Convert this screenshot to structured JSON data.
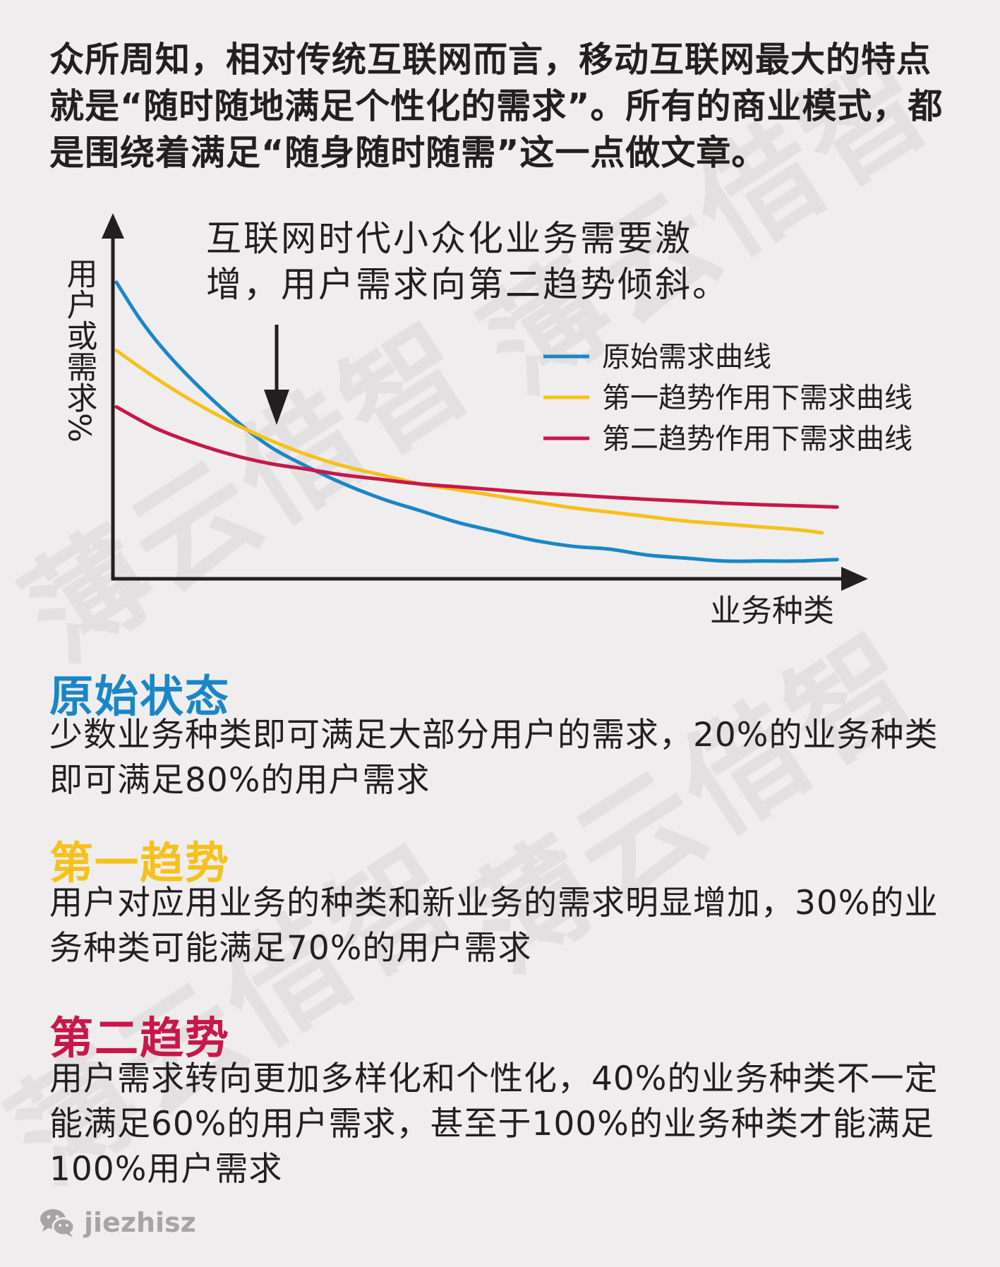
{
  "intro": "众所周知，相对传统互联网而言，移动互联网最大的特点就是“随时随地满足个性化的需求”。所有的商业模式，都是围绕着满足“随身随时随需”这一点做文章。",
  "watermark": "薄云借智",
  "chart_data": {
    "type": "line",
    "ylabel": "用户或需求%",
    "xlabel": "业务种类",
    "annotation": "互联网时代小众化业务需要激增，用户需求向第二趋势倾斜。",
    "legend_position": "top-right",
    "grid": false,
    "xlim": [
      0,
      100
    ],
    "ylim": [
      0,
      100
    ],
    "series": [
      {
        "name": "原始需求曲线",
        "color": "#1a86c6",
        "x": [
          0,
          3,
          6,
          10,
          15,
          20,
          25,
          30,
          35,
          40,
          45,
          50,
          55,
          60,
          65,
          70,
          75,
          80,
          85,
          90,
          95
        ],
        "y": [
          100,
          88,
          78,
          67,
          55,
          45,
          38,
          32,
          27,
          23,
          19,
          16,
          13,
          11,
          10,
          8,
          7,
          6,
          6,
          6,
          6.5
        ]
      },
      {
        "name": "第一趋势作用下需求曲线",
        "color": "#f6c11b",
        "x": [
          0,
          5,
          10,
          15,
          20,
          25,
          30,
          35,
          40,
          45,
          50,
          55,
          60,
          65,
          70,
          75,
          80,
          85,
          90,
          93
        ],
        "y": [
          77,
          68,
          60,
          53,
          47,
          42,
          38,
          35,
          32,
          30,
          28,
          26,
          24,
          22.5,
          21,
          19.5,
          18.5,
          17.5,
          16.5,
          15.5
        ]
      },
      {
        "name": "第二趋势作用下需求曲线",
        "color": "#c8174a",
        "x": [
          0,
          5,
          10,
          15,
          20,
          25,
          30,
          35,
          40,
          45,
          50,
          55,
          60,
          65,
          70,
          75,
          80,
          85,
          90,
          95
        ],
        "y": [
          58,
          51,
          46,
          42,
          39,
          37,
          35,
          33.5,
          32,
          31,
          30,
          29,
          28.3,
          27.5,
          26.8,
          26.2,
          25.5,
          25,
          24.6,
          24.2
        ]
      }
    ]
  },
  "sections": [
    {
      "title": "原始状态",
      "color": "#1a86c6",
      "body": "少数业务种类即可满足大部分用户的需求，20%的业务种类即可满足80%的用户需求"
    },
    {
      "title": "第一趋势",
      "color": "#f6c11b",
      "body": "用户对应用业务的种类和新业务的需求明显增加，30%的业务种类可能满足70%的用户需求"
    },
    {
      "title": "第二趋势",
      "color": "#c8174a",
      "body": "用户需求转向更加多样化和个性化，40%的业务种类不一定能满足60%的用户需求，甚至于100%的业务种类才能满足100%用户需求"
    }
  ],
  "brand": {
    "icon": "wechat-icon",
    "name": "jiezhisz"
  }
}
